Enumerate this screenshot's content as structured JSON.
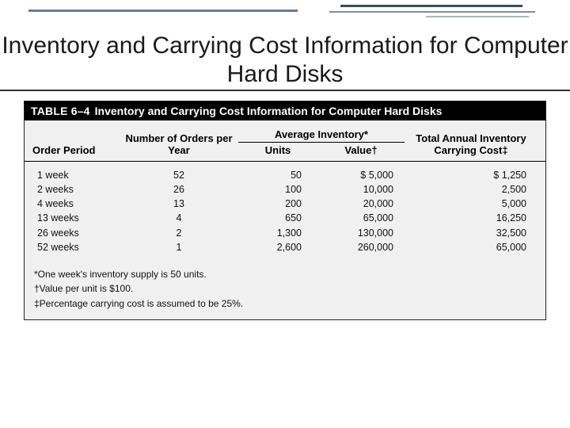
{
  "slide": {
    "title": "Inventory and Carrying Cost Information for Computer Hard Disks"
  },
  "table": {
    "label": "TABLE 6–4",
    "caption": "Inventory and Carrying Cost Information for Computer Hard Disks",
    "headers": {
      "order_period": "Order Period",
      "orders_per_year": "Number of Orders per Year",
      "avg_inventory": "Average Inventory*",
      "units": "Units",
      "value": "Value†",
      "total_cost": "Total Annual Inventory Carrying Cost‡"
    },
    "rows": [
      {
        "period": "1 week",
        "orders": "52",
        "units": "50",
        "value": "$   5,000",
        "cost": "$  1,250"
      },
      {
        "period": "2 weeks",
        "orders": "26",
        "units": "100",
        "value": "10,000",
        "cost": "2,500"
      },
      {
        "period": "4 weeks",
        "orders": "13",
        "units": "200",
        "value": "20,000",
        "cost": "5,000"
      },
      {
        "period": "13 weeks",
        "orders": "4",
        "units": "650",
        "value": "65,000",
        "cost": "16,250"
      },
      {
        "period": "26 weeks",
        "orders": "2",
        "units": "1,300",
        "value": "130,000",
        "cost": "32,500"
      },
      {
        "period": "52 weeks",
        "orders": "1",
        "units": "2,600",
        "value": "260,000",
        "cost": "65,000"
      }
    ],
    "footnotes": {
      "a": "*One week's inventory supply is 50 units.",
      "b": "†Value per unit is $100.",
      "c": "‡Percentage carrying cost is assumed to be 25%."
    }
  },
  "style": {
    "background": "#ffffff",
    "title_font": "Trebuchet MS",
    "title_size_pt": 30,
    "table_bg": "#f0f0f0",
    "table_title_bg": "#000000",
    "table_title_color": "#ffffff",
    "border_color": "#000000",
    "decor_colors": [
      "#6b7a8f",
      "#3a4a5f",
      "#7d8fa3",
      "#a9b6c4"
    ]
  }
}
